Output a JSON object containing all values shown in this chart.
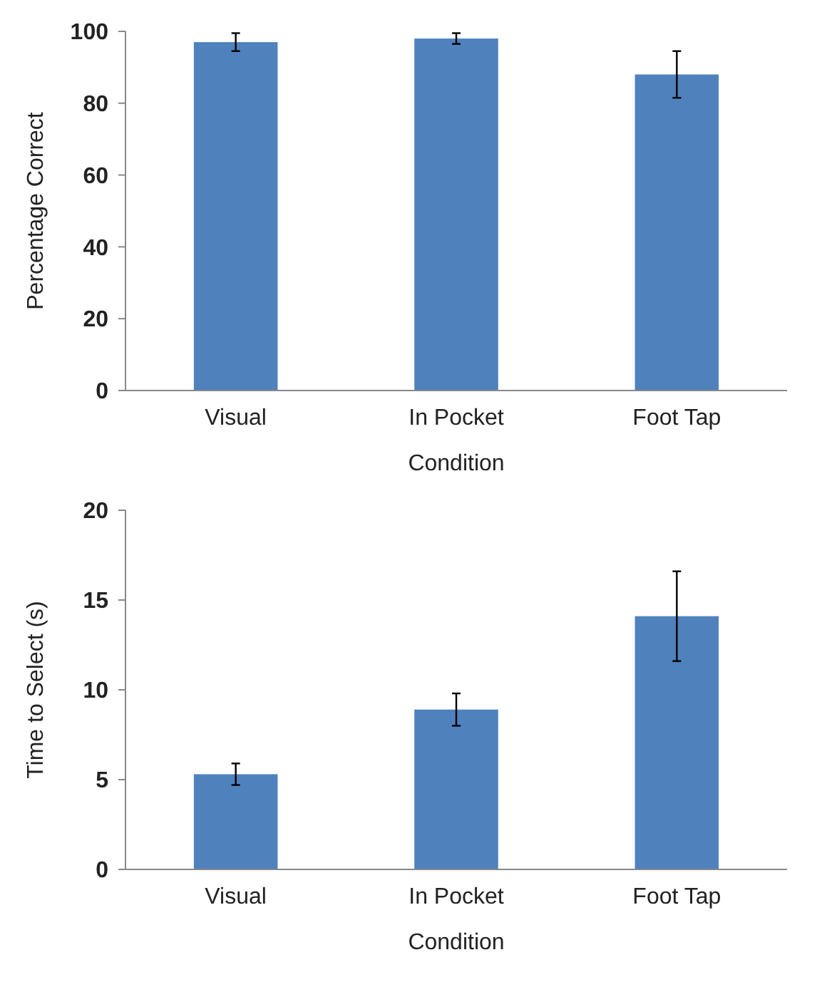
{
  "chart_data": [
    {
      "type": "bar",
      "xlabel": "Condition",
      "ylabel": "Percentage Correct",
      "categories": [
        "Visual",
        "In Pocket",
        "Foot Tap"
      ],
      "values": [
        97,
        98,
        88
      ],
      "errors": [
        2.5,
        1.5,
        6.5
      ],
      "color": "#4f81bd",
      "ylim": [
        0,
        100
      ],
      "yticks": [
        0,
        20,
        40,
        60,
        80,
        100
      ],
      "grid": false
    },
    {
      "type": "bar",
      "xlabel": "Condition",
      "ylabel": "Time to Select (s)",
      "categories": [
        "Visual",
        "In Pocket",
        "Foot Tap"
      ],
      "values": [
        5.3,
        8.9,
        14.1
      ],
      "errors": [
        0.6,
        0.9,
        2.5
      ],
      "color": "#4f81bd",
      "ylim": [
        0,
        20
      ],
      "yticks": [
        0,
        5,
        10,
        15,
        20
      ],
      "grid": false
    }
  ]
}
